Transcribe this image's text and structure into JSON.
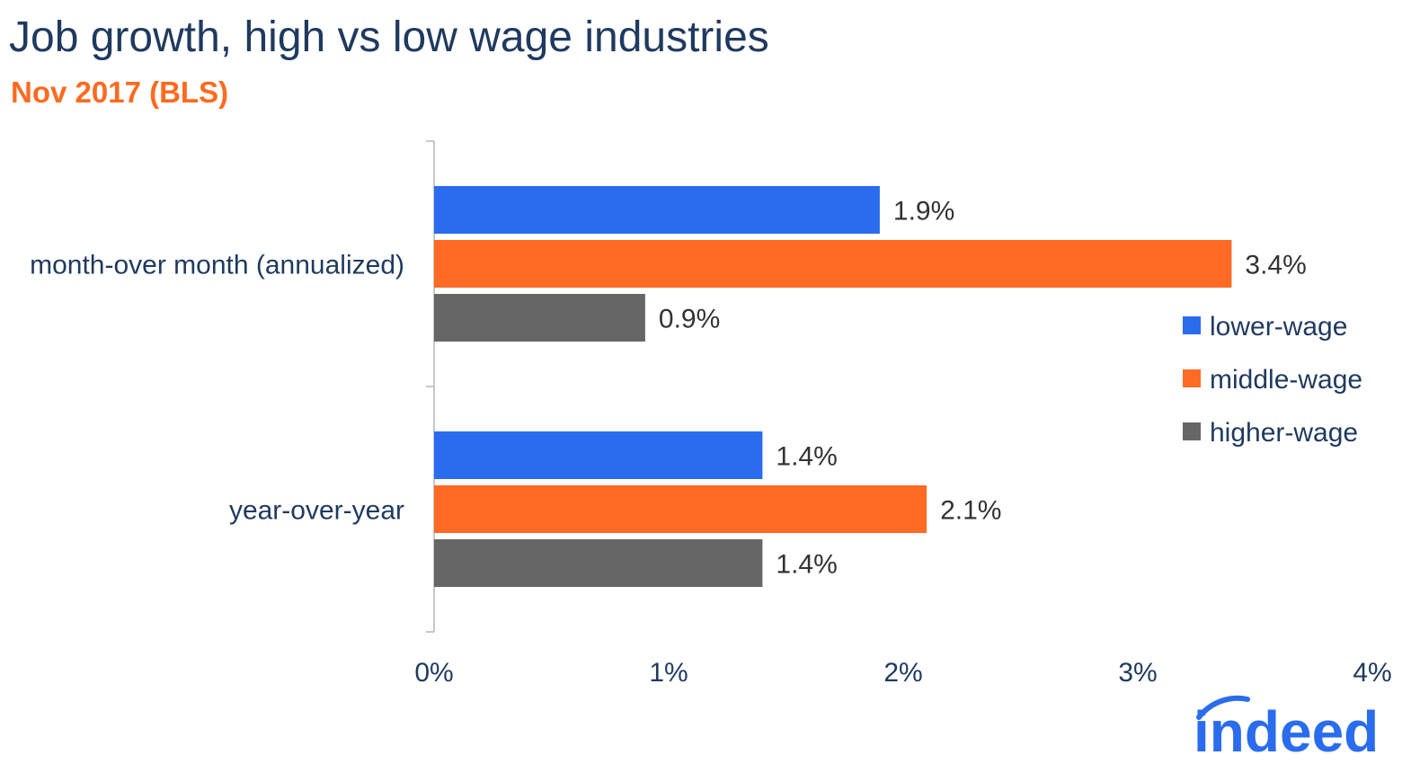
{
  "title": "Job growth, high vs low wage industries",
  "subtitle": "Nov 2017 (BLS)",
  "logo_text": "indeed",
  "colors": {
    "lower": "#2a6ced",
    "middle": "#ff6a24",
    "higher": "#666666",
    "axis": "#c8c8c8",
    "text": "#1f3a5f",
    "label": "#333333"
  },
  "chart_data": {
    "type": "bar",
    "orientation": "horizontal",
    "categories": [
      "month-over month (annualized)",
      "year-over-year"
    ],
    "series": [
      {
        "name": "lower-wage",
        "values": [
          1.9,
          1.4
        ],
        "labels": [
          "1.9%",
          "1.4%"
        ]
      },
      {
        "name": "middle-wage",
        "values": [
          3.4,
          2.1
        ],
        "labels": [
          "3.4%",
          "2.1%"
        ]
      },
      {
        "name": "higher-wage",
        "values": [
          0.9,
          1.4
        ],
        "labels": [
          "0.9%",
          "1.4%"
        ]
      }
    ],
    "xlim": [
      0,
      4
    ],
    "xticks": [
      0,
      1,
      2,
      3,
      4
    ],
    "xtick_labels": [
      "0%",
      "1%",
      "2%",
      "3%",
      "4%"
    ],
    "grid": false,
    "legend_position": "right"
  }
}
